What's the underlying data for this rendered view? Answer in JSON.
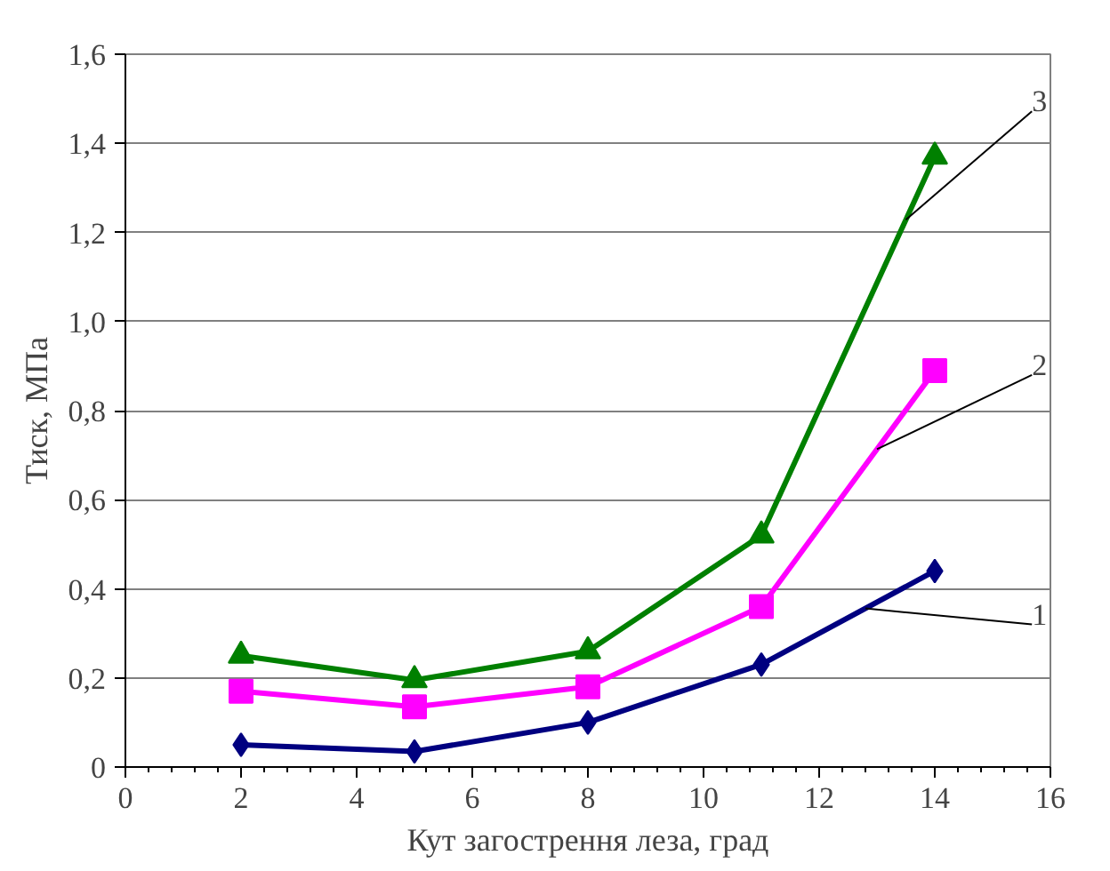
{
  "chart_data": {
    "type": "line",
    "xlabel": "Кут загострення леза, град",
    "ylabel": "Тиск, МПа",
    "x": [
      2,
      5,
      8,
      11,
      14
    ],
    "series": [
      {
        "name": "1",
        "color": "#000080",
        "marker": "diamond",
        "values": [
          0.05,
          0.035,
          0.1,
          0.23,
          0.44
        ]
      },
      {
        "name": "2",
        "color": "#ff00ff",
        "marker": "square",
        "values": [
          0.17,
          0.135,
          0.18,
          0.36,
          0.89
        ]
      },
      {
        "name": "3",
        "color": "#008000",
        "marker": "triangle",
        "values": [
          0.25,
          0.195,
          0.26,
          0.52,
          1.37
        ]
      }
    ],
    "xlim": [
      0,
      16
    ],
    "ylim": [
      0,
      1.6
    ],
    "xticks": [
      0,
      2,
      4,
      6,
      8,
      10,
      12,
      14,
      16
    ],
    "yticks": [
      0,
      {
        "value": 0.2,
        "label": "0,2"
      },
      {
        "value": 0.4,
        "label": "0,4"
      },
      {
        "value": 0.6,
        "label": "0,6"
      },
      {
        "value": 0.8,
        "label": "0,8"
      },
      {
        "value": 1.0,
        "label": "1,0"
      },
      {
        "value": 1.2,
        "label": "1,2"
      },
      {
        "value": 1.4,
        "label": "1,4"
      },
      {
        "value": 1.6,
        "label": "1,6"
      }
    ],
    "grid": "y",
    "legend": false,
    "line_style": "solid"
  }
}
